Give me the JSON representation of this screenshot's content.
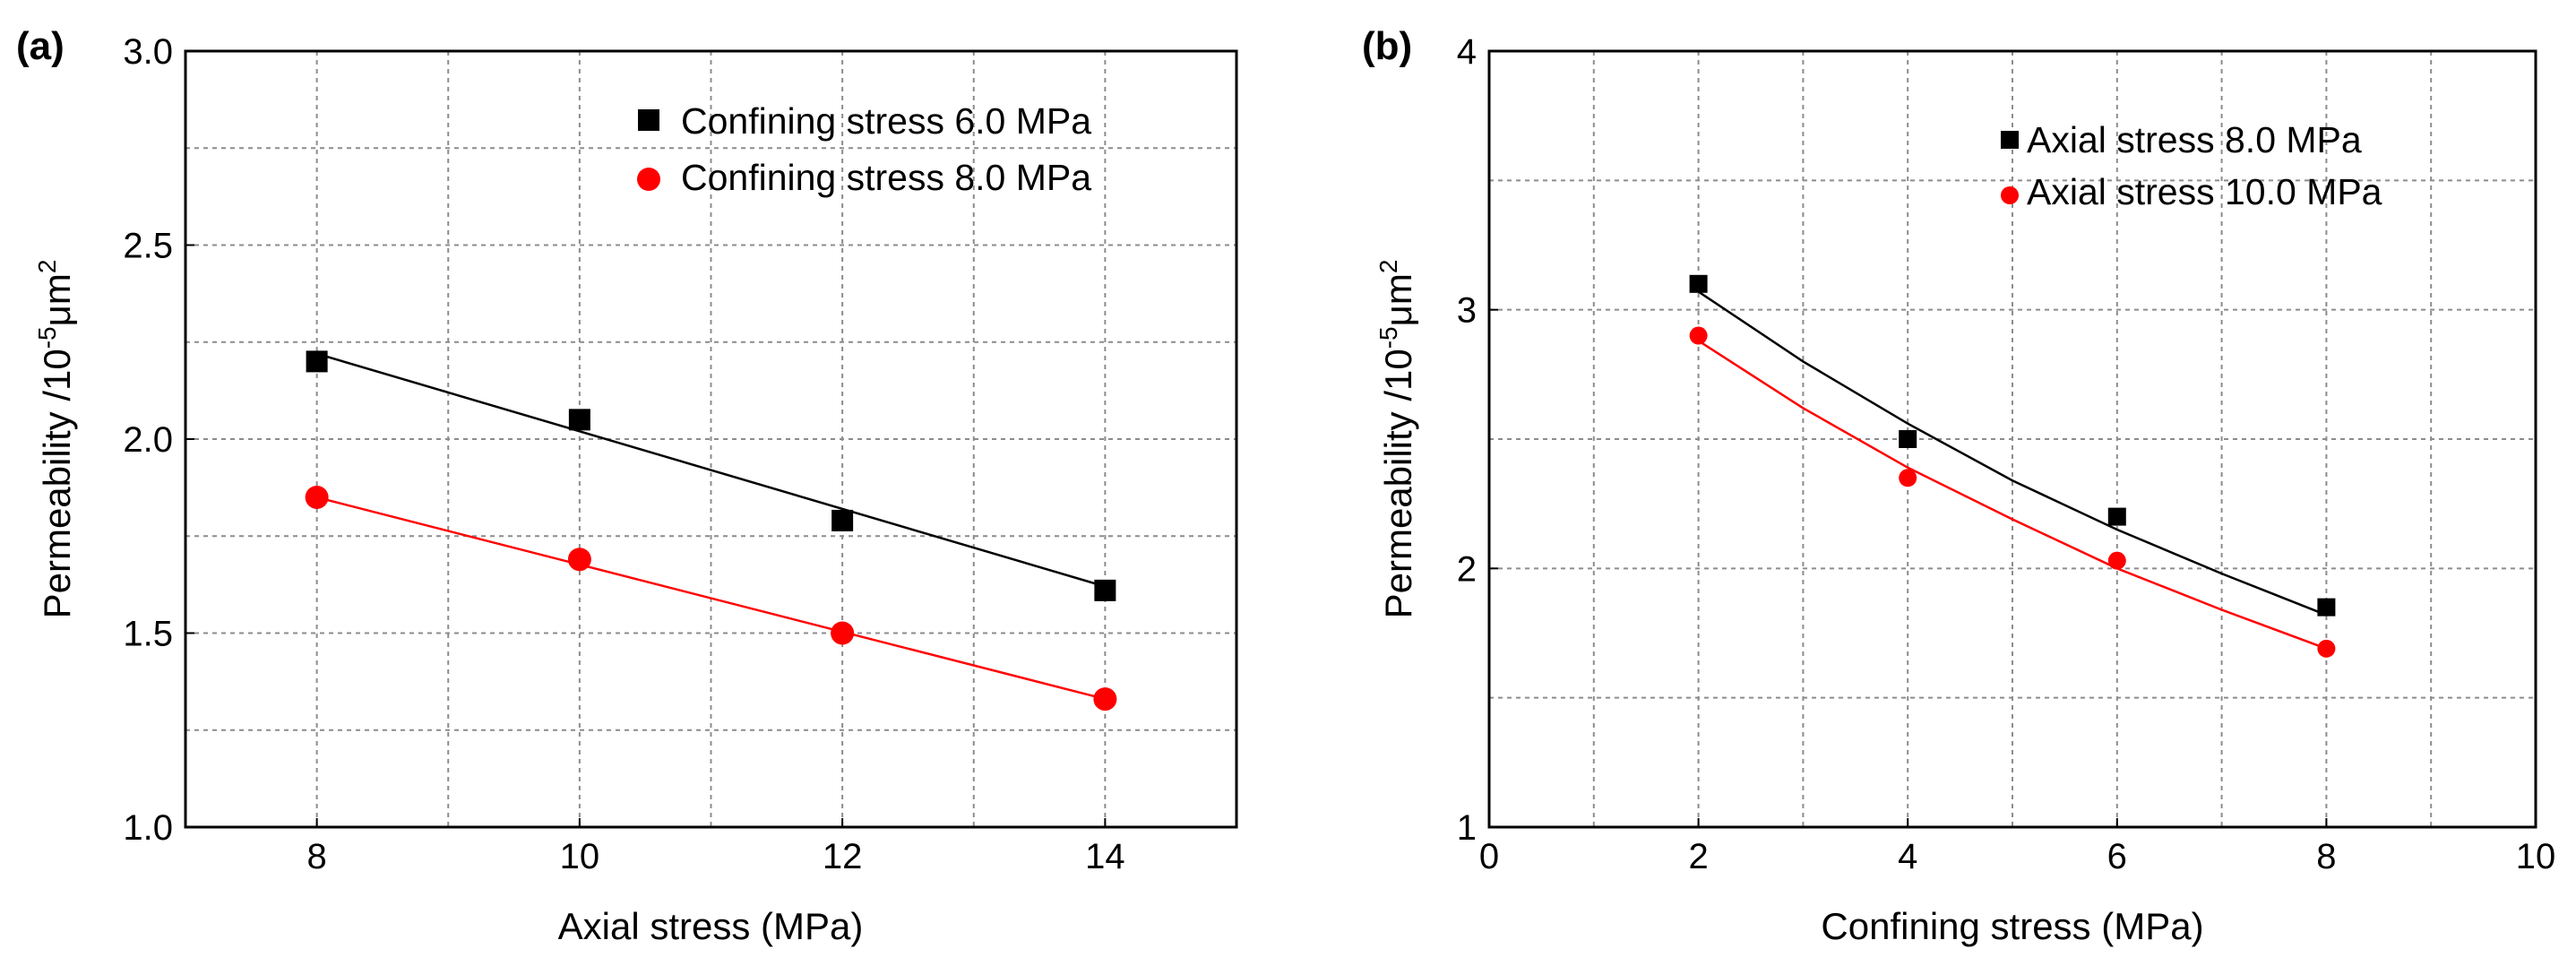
{
  "chart_data": [
    {
      "panel": "(a)",
      "type": "scatter",
      "title": "",
      "xlabel": "Axial stress (MPa)",
      "ylabel": "Permeability /10",
      "ylabel_sup": "-5",
      "ylabel_unit": "μm",
      "ylabel_unit_sup": "2",
      "xlim": [
        7,
        15
      ],
      "ylim": [
        1.0,
        3.0
      ],
      "xticks": [
        8,
        10,
        12,
        14
      ],
      "xtick_labels": [
        "8",
        "10",
        "12",
        "14"
      ],
      "xgrid": [
        8,
        9,
        10,
        11,
        12,
        13,
        14
      ],
      "yticks": [
        1.0,
        1.5,
        2.0,
        2.5,
        3.0
      ],
      "ytick_labels": [
        "1.0",
        "1.5",
        "2.0",
        "2.5",
        "3.0"
      ],
      "ygrid": [
        1.25,
        1.5,
        1.75,
        2.0,
        2.25,
        2.5,
        2.75
      ],
      "grid": true,
      "legend": "top-right",
      "series": [
        {
          "name": "Confining stress 6.0 MPa",
          "marker": "square",
          "color": "#000000",
          "x": [
            8,
            10,
            12,
            14
          ],
          "y": [
            2.2,
            2.05,
            1.79,
            1.61
          ],
          "fit": [
            [
              8,
              2.22
            ],
            [
              14,
              1.62
            ]
          ]
        },
        {
          "name": "Confining stress 8.0 MPa",
          "marker": "circle",
          "color": "#ff0000",
          "x": [
            8,
            10,
            12,
            14
          ],
          "y": [
            1.85,
            1.69,
            1.5,
            1.33
          ],
          "fit": [
            [
              8,
              1.85
            ],
            [
              14,
              1.33
            ]
          ]
        }
      ]
    },
    {
      "panel": "(b)",
      "type": "scatter",
      "title": "",
      "xlabel": "Confining stress (MPa)",
      "ylabel": "Permeability /10",
      "ylabel_sup": "-5",
      "ylabel_unit": "μm",
      "ylabel_unit_sup": "2",
      "xlim": [
        0,
        10
      ],
      "ylim": [
        1,
        4
      ],
      "xticks": [
        0,
        2,
        4,
        6,
        8,
        10
      ],
      "xtick_labels": [
        "0",
        "2",
        "4",
        "6",
        "8",
        "10"
      ],
      "xgrid": [
        1,
        2,
        3,
        4,
        5,
        6,
        7,
        8,
        9
      ],
      "yticks": [
        1,
        2,
        3,
        4
      ],
      "ytick_labels": [
        "1",
        "2",
        "3",
        "4"
      ],
      "ygrid": [
        1.5,
        2,
        2.5,
        3,
        3.5
      ],
      "grid": true,
      "legend": "top-right",
      "series": [
        {
          "name": "Axial stress 8.0 MPa",
          "marker": "square",
          "color": "#000000",
          "x": [
            2,
            4,
            6,
            8
          ],
          "y": [
            3.1,
            2.5,
            2.2,
            1.85
          ],
          "fit": [
            [
              2,
              3.07
            ],
            [
              3,
              2.8
            ],
            [
              4,
              2.56
            ],
            [
              5,
              2.34
            ],
            [
              6,
              2.15
            ],
            [
              7,
              1.98
            ],
            [
              8,
              1.82
            ]
          ]
        },
        {
          "name": "Axial stress 10.0 MPa",
          "marker": "circle",
          "color": "#ff0000",
          "x": [
            2,
            4,
            6,
            8
          ],
          "y": [
            2.9,
            2.35,
            2.03,
            1.69
          ],
          "fit": [
            [
              2,
              2.88
            ],
            [
              3,
              2.62
            ],
            [
              4,
              2.39
            ],
            [
              5,
              2.19
            ],
            [
              6,
              2.0
            ],
            [
              7,
              1.84
            ],
            [
              8,
              1.69
            ]
          ]
        }
      ]
    }
  ]
}
